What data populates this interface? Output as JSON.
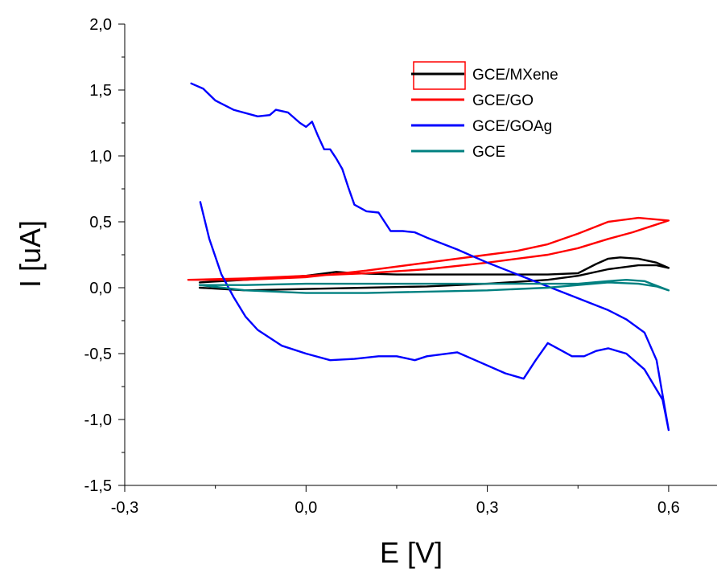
{
  "chart_data": {
    "type": "line",
    "xlabel": "E [V]",
    "ylabel": "I [uA]",
    "xlim": [
      -0.3,
      0.68
    ],
    "ylim": [
      -1.5,
      2.0
    ],
    "x_ticks": [
      -0.3,
      0.0,
      0.3,
      0.6
    ],
    "x_tick_labels": [
      "-0,3",
      "0,0",
      "0,3",
      "0,6"
    ],
    "y_ticks": [
      -1.5,
      -1.0,
      -0.5,
      0.0,
      0.5,
      1.0,
      1.5,
      2.0
    ],
    "y_tick_labels": [
      "-1,5",
      "-1,0",
      "-0,5",
      "0,0",
      "0,5",
      "1,0",
      "1,5",
      "2,0"
    ],
    "legend_position": "top-right",
    "series": [
      {
        "name": "GCE/MXene",
        "color": "#000000",
        "x": [
          -0.176,
          -0.1,
          0.0,
          0.05,
          0.08,
          0.15,
          0.3,
          0.4,
          0.45,
          0.48,
          0.5,
          0.52,
          0.55,
          0.58,
          0.6,
          0.58,
          0.55,
          0.5,
          0.45,
          0.4,
          0.3,
          0.2,
          0.1,
          0.0,
          -0.1,
          -0.176
        ],
        "y": [
          0.04,
          0.06,
          0.09,
          0.12,
          0.11,
          0.1,
          0.1,
          0.1,
          0.11,
          0.18,
          0.22,
          0.23,
          0.22,
          0.19,
          0.15,
          0.17,
          0.17,
          0.14,
          0.09,
          0.06,
          0.03,
          0.01,
          0.0,
          -0.01,
          -0.02,
          0.0
        ]
      },
      {
        "name": "GCE/GO",
        "color": "#ff0000",
        "x": [
          -0.195,
          -0.1,
          0.0,
          0.1,
          0.2,
          0.3,
          0.4,
          0.45,
          0.5,
          0.54,
          0.56,
          0.58,
          0.6,
          0.55,
          0.5,
          0.45,
          0.4,
          0.35,
          0.3,
          0.2,
          0.1,
          0.0,
          -0.1,
          -0.195
        ],
        "y": [
          0.06,
          0.07,
          0.09,
          0.11,
          0.14,
          0.19,
          0.25,
          0.3,
          0.37,
          0.42,
          0.45,
          0.48,
          0.51,
          0.53,
          0.5,
          0.41,
          0.33,
          0.28,
          0.25,
          0.19,
          0.13,
          0.08,
          0.06,
          0.06
        ]
      },
      {
        "name": "GCE/GOAg",
        "color": "#0000ff",
        "x": [
          -0.19,
          -0.17,
          -0.15,
          -0.12,
          -0.08,
          -0.06,
          -0.05,
          -0.03,
          -0.01,
          0.0,
          0.01,
          0.02,
          0.03,
          0.04,
          0.05,
          0.06,
          0.07,
          0.08,
          0.1,
          0.12,
          0.13,
          0.14,
          0.16,
          0.18,
          0.2,
          0.25,
          0.3,
          0.35,
          0.4,
          0.45,
          0.5,
          0.53,
          0.56,
          0.58,
          0.6,
          0.59,
          0.56,
          0.53,
          0.5,
          0.48,
          0.46,
          0.44,
          0.42,
          0.4,
          0.38,
          0.36,
          0.33,
          0.28,
          0.25,
          0.2,
          0.18,
          0.15,
          0.12,
          0.08,
          0.04,
          0.0,
          -0.04,
          -0.08,
          -0.1,
          -0.12,
          -0.14,
          -0.16,
          -0.175
        ],
        "y": [
          1.55,
          1.51,
          1.42,
          1.35,
          1.3,
          1.31,
          1.35,
          1.33,
          1.25,
          1.22,
          1.26,
          1.15,
          1.05,
          1.05,
          0.98,
          0.9,
          0.76,
          0.63,
          0.58,
          0.57,
          0.5,
          0.43,
          0.43,
          0.42,
          0.38,
          0.29,
          0.19,
          0.1,
          0.01,
          -0.08,
          -0.17,
          -0.24,
          -0.34,
          -0.55,
          -1.08,
          -0.85,
          -0.62,
          -0.5,
          -0.46,
          -0.48,
          -0.52,
          -0.52,
          -0.47,
          -0.42,
          -0.55,
          -0.69,
          -0.65,
          -0.55,
          -0.49,
          -0.52,
          -0.55,
          -0.52,
          -0.52,
          -0.54,
          -0.55,
          -0.5,
          -0.44,
          -0.32,
          -0.22,
          -0.07,
          0.1,
          0.37,
          0.65
        ]
      },
      {
        "name": "GCE",
        "color": "#008080",
        "x": [
          -0.176,
          -0.1,
          0.0,
          0.1,
          0.2,
          0.3,
          0.4,
          0.45,
          0.5,
          0.53,
          0.56,
          0.6,
          0.58,
          0.55,
          0.5,
          0.45,
          0.4,
          0.3,
          0.2,
          0.1,
          0.0,
          -0.1,
          -0.176
        ],
        "y": [
          0.02,
          0.02,
          0.03,
          0.03,
          0.03,
          0.03,
          0.03,
          0.03,
          0.05,
          0.06,
          0.05,
          -0.02,
          0.01,
          0.03,
          0.04,
          0.02,
          0.0,
          -0.02,
          -0.03,
          -0.04,
          -0.04,
          -0.02,
          0.02
        ]
      }
    ]
  }
}
